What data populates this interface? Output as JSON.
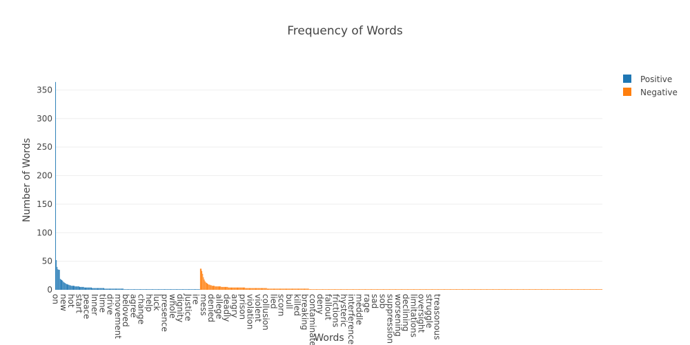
{
  "chart_data": {
    "type": "bar",
    "title": "Frequency of Words",
    "xlabel": "Words",
    "ylabel": "Number of Words",
    "ylim": [
      0,
      365
    ],
    "yticks": [
      0,
      50,
      100,
      150,
      200,
      250,
      300,
      350
    ],
    "grid": true,
    "legend_position": "top-right",
    "series": [
      {
        "name": "Positive",
        "color": "#1f77b4",
        "values": [
          364,
          52,
          40,
          36,
          35,
          35,
          19,
          18,
          17,
          16,
          14,
          13,
          12,
          11,
          10,
          10,
          9,
          9,
          8,
          8,
          7,
          7,
          7,
          7,
          7,
          6,
          6,
          6,
          6,
          6,
          6,
          5,
          5,
          5,
          5,
          5,
          5,
          4,
          4,
          4,
          4,
          4,
          4,
          4,
          4,
          4,
          4,
          3,
          3,
          3,
          3,
          3,
          3,
          3,
          3,
          3,
          3,
          3,
          3,
          3,
          3,
          3,
          3,
          2,
          2,
          2,
          2,
          2,
          2,
          2,
          2,
          2,
          2,
          2,
          2,
          2,
          2,
          2,
          2,
          2,
          2,
          2,
          2,
          2,
          2,
          2,
          2,
          2,
          1,
          1,
          1,
          1,
          1,
          1,
          1,
          1,
          1,
          1,
          1,
          1,
          1,
          1,
          1,
          1,
          1,
          1,
          1,
          1,
          1,
          1,
          1,
          1,
          1,
          1,
          1,
          1,
          1,
          1,
          1,
          1,
          1,
          1,
          1,
          1,
          1,
          1,
          1,
          1,
          1,
          1,
          1,
          1,
          1,
          1,
          1,
          1,
          1,
          1,
          1,
          1,
          1,
          1,
          1,
          1,
          1,
          1,
          1,
          1,
          1,
          1,
          1,
          1,
          1,
          1,
          1,
          1,
          1,
          1,
          1,
          1,
          1,
          1,
          1,
          1,
          1,
          1,
          1,
          1,
          1,
          1,
          1,
          1,
          1,
          1,
          1,
          1,
          1,
          1,
          1,
          1,
          1,
          1,
          1,
          1,
          1,
          1
        ]
      },
      {
        "name": "Negative",
        "color": "#ff7f0e",
        "values": [
          37,
          37,
          33,
          28,
          22,
          18,
          15,
          13,
          12,
          11,
          10,
          9,
          9,
          8,
          8,
          7,
          7,
          7,
          7,
          6,
          6,
          6,
          6,
          6,
          6,
          6,
          6,
          5,
          5,
          5,
          5,
          5,
          5,
          5,
          5,
          5,
          4,
          4,
          4,
          4,
          4,
          4,
          4,
          4,
          4,
          4,
          4,
          4,
          4,
          4,
          4,
          4,
          4,
          4,
          4,
          4,
          4,
          4,
          3,
          3,
          3,
          3,
          3,
          3,
          3,
          3,
          3,
          3,
          3,
          3,
          3,
          3,
          3,
          3,
          3,
          3,
          3,
          3,
          3,
          3,
          3,
          3,
          3,
          3,
          3,
          3,
          2,
          2,
          2,
          2,
          2,
          2,
          2,
          2,
          2,
          2,
          2,
          2,
          2,
          2,
          2,
          2,
          2,
          2,
          2,
          2,
          2,
          2,
          2,
          2,
          2,
          2,
          2,
          2,
          2,
          2,
          2,
          2,
          2,
          2,
          2,
          2,
          2,
          2,
          2,
          2,
          2,
          2,
          2,
          2,
          2,
          2,
          2,
          2,
          2,
          2,
          2,
          2,
          2,
          2,
          1,
          1,
          1,
          1,
          1,
          1,
          1,
          1,
          1,
          1,
          1,
          1,
          1,
          1,
          1,
          1,
          1,
          1,
          1,
          1,
          1,
          1,
          1,
          1,
          1,
          1,
          1,
          1,
          1,
          1,
          1,
          1,
          1,
          1,
          1,
          1,
          1,
          1,
          1,
          1,
          1,
          1,
          1,
          1,
          1,
          1,
          1,
          1,
          1,
          1,
          1,
          1,
          1,
          1,
          1,
          1,
          1,
          1,
          1,
          1,
          1,
          1,
          1,
          1,
          1,
          1,
          1,
          1,
          1,
          1,
          1,
          1,
          1,
          1,
          1,
          1,
          1,
          1,
          1,
          1,
          1,
          1,
          1,
          1,
          1,
          1,
          1,
          1,
          1,
          1,
          1,
          1,
          1,
          1,
          1,
          1,
          1,
          1,
          1,
          1,
          1,
          1,
          1,
          1,
          1,
          1,
          1,
          1,
          1,
          1,
          1,
          1,
          1,
          1,
          1,
          1,
          1,
          1,
          1,
          1,
          1,
          1,
          1,
          1,
          1,
          1,
          1,
          1,
          1,
          1,
          1,
          1,
          1,
          1,
          1,
          1,
          1,
          1,
          1,
          1,
          1,
          1,
          1,
          1,
          1,
          1,
          1,
          1,
          1,
          1,
          1,
          1,
          1,
          1,
          1,
          1,
          1,
          1,
          1,
          1,
          1,
          1,
          1,
          1,
          1,
          1,
          1,
          1,
          1,
          1,
          1,
          1,
          1,
          1,
          1,
          1,
          1,
          1,
          1,
          1,
          1,
          1,
          1,
          1,
          1,
          1,
          1,
          1,
          1,
          1,
          1,
          1,
          1,
          1,
          1,
          1,
          1,
          1,
          1,
          1,
          1,
          1,
          1,
          1,
          1,
          1,
          1,
          1,
          1,
          1,
          1,
          1,
          1,
          1,
          1,
          1,
          1,
          1,
          1,
          1,
          1,
          1,
          1,
          1,
          1,
          1,
          1,
          1,
          1,
          1,
          1,
          1,
          1,
          1,
          1,
          1,
          1,
          1,
          1,
          1,
          1,
          1,
          1,
          1,
          1,
          1,
          1,
          1,
          1,
          1,
          1,
          1,
          1,
          1,
          1,
          1,
          1,
          1,
          1,
          1,
          1,
          1,
          1,
          1,
          1,
          1,
          1,
          1,
          1,
          1,
          1,
          1,
          1,
          1,
          1,
          1,
          1,
          1,
          1,
          1,
          1,
          1,
          1,
          1,
          1,
          1,
          1,
          1,
          1,
          1,
          1,
          1,
          1,
          1,
          1,
          1,
          1,
          1,
          1,
          1,
          1,
          1,
          1,
          1,
          1,
          1,
          1,
          1,
          1,
          1,
          1,
          1,
          1,
          1,
          1,
          1,
          1,
          1,
          1,
          1,
          1,
          1,
          1,
          1,
          1,
          1,
          1,
          1,
          1,
          1,
          1,
          1,
          1,
          1,
          1,
          1,
          1,
          1,
          1,
          1,
          1,
          1,
          1,
          1,
          1,
          1,
          1,
          1,
          1,
          1,
          1,
          1,
          1,
          1,
          1,
          1,
          1,
          1,
          1,
          1,
          1,
          1,
          1,
          1,
          1,
          1,
          1,
          1,
          1,
          1,
          1,
          1,
          1,
          1,
          1,
          1,
          1
        ]
      }
    ],
    "tick_labels": [
      {
        "index": 0,
        "text": "on"
      },
      {
        "index": 10,
        "text": "new"
      },
      {
        "index": 20,
        "text": "hot"
      },
      {
        "index": 30,
        "text": "start"
      },
      {
        "index": 40,
        "text": "peace"
      },
      {
        "index": 50,
        "text": "Inner"
      },
      {
        "index": 60,
        "text": "time"
      },
      {
        "index": 70,
        "text": "drive"
      },
      {
        "index": 80,
        "text": "movement"
      },
      {
        "index": 90,
        "text": "beloved"
      },
      {
        "index": 100,
        "text": "agree"
      },
      {
        "index": 110,
        "text": "change"
      },
      {
        "index": 120,
        "text": "help"
      },
      {
        "index": 130,
        "text": "luck"
      },
      {
        "index": 140,
        "text": "presence"
      },
      {
        "index": 150,
        "text": "whole"
      },
      {
        "index": 160,
        "text": "dignity"
      },
      {
        "index": 170,
        "text": "Justice"
      },
      {
        "index": 180,
        "text": "ire"
      },
      {
        "index": 190,
        "text": "mess"
      },
      {
        "index": 200,
        "text": "denied"
      },
      {
        "index": 210,
        "text": "allege"
      },
      {
        "index": 220,
        "text": "deadly"
      },
      {
        "index": 230,
        "text": "angry"
      },
      {
        "index": 240,
        "text": "prison"
      },
      {
        "index": 250,
        "text": "violation"
      },
      {
        "index": 260,
        "text": "violent"
      },
      {
        "index": 270,
        "text": "collusion"
      },
      {
        "index": 280,
        "text": "lied"
      },
      {
        "index": 290,
        "text": "scorn"
      },
      {
        "index": 300,
        "text": "bull"
      },
      {
        "index": 310,
        "text": "killed"
      },
      {
        "index": 320,
        "text": "breaking"
      },
      {
        "index": 330,
        "text": "contaminate"
      },
      {
        "index": 340,
        "text": "deny"
      },
      {
        "index": 350,
        "text": "fallout"
      },
      {
        "index": 360,
        "text": "frictions"
      },
      {
        "index": 370,
        "text": "hysteric"
      },
      {
        "index": 380,
        "text": "interference"
      },
      {
        "index": 390,
        "text": "meddle"
      },
      {
        "index": 400,
        "text": "rage"
      },
      {
        "index": 410,
        "text": "sad"
      },
      {
        "index": 420,
        "text": "sob"
      },
      {
        "index": 430,
        "text": "suppression"
      },
      {
        "index": 440,
        "text": "worsening"
      },
      {
        "index": 450,
        "text": "declining"
      },
      {
        "index": 460,
        "text": "limitations"
      },
      {
        "index": 470,
        "text": "oversight"
      },
      {
        "index": 480,
        "text": "struggle"
      },
      {
        "index": 490,
        "text": "treasonous"
      }
    ]
  }
}
